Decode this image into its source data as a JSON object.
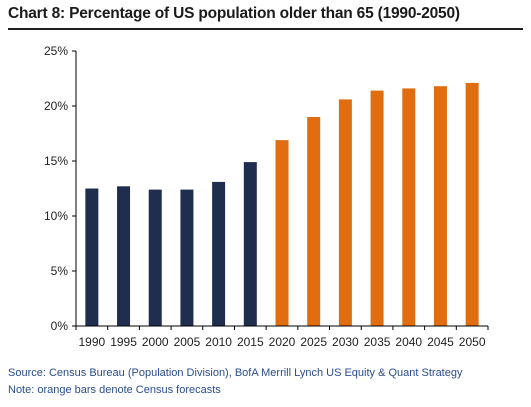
{
  "title": "Chart 8: Percentage of US population older than 65 (1990-2050)",
  "source": "Source: Census Bureau (Population Division), BofA Merrill Lynch US Equity & Quant Strategy",
  "note": "Note: orange bars denote Census forecasts",
  "colors": {
    "actual": "#1f2d4f",
    "forecast": "#e06d10",
    "footnote": "#2a4d8f"
  },
  "chart_data": {
    "type": "bar",
    "title": "Chart 8: Percentage of US population older than 65 (1990-2050)",
    "xlabel": "",
    "ylabel": "",
    "categories": [
      "1990",
      "1995",
      "2000",
      "2005",
      "2010",
      "2015",
      "2020",
      "2025",
      "2030",
      "2035",
      "2040",
      "2045",
      "2050"
    ],
    "values": [
      12.5,
      12.7,
      12.4,
      12.4,
      13.1,
      14.9,
      16.9,
      19.0,
      20.6,
      21.4,
      21.6,
      21.8,
      22.1
    ],
    "forecast_from_index": 6,
    "ylim": [
      0,
      25
    ],
    "yticks": [
      0,
      5,
      10,
      15,
      20,
      25
    ],
    "ytick_labels": [
      "0%",
      "5%",
      "10%",
      "15%",
      "20%",
      "25%"
    ],
    "grid": false,
    "legend": "none"
  }
}
